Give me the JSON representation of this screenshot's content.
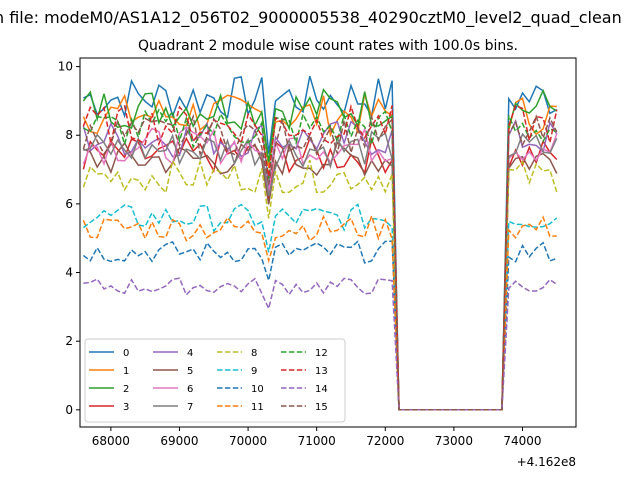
{
  "suptitle": "n file: modeM0/AS1A12_056T02_9000005538_40290cztM0_level2_quad_clean",
  "chart_data": {
    "type": "line",
    "title": "Quadrant 2 module wise count rates with 100.0s bins.",
    "xlabel": "",
    "ylabel": "",
    "offset_text": "+4.162e8",
    "xlim": [
      67550,
      74780
    ],
    "ylim": [
      -0.5,
      10.25
    ],
    "x_ticks": [
      68000,
      69000,
      70000,
      71000,
      72000,
      73000,
      74000
    ],
    "y_ticks": [
      0,
      2,
      4,
      6,
      8,
      10
    ],
    "grid": false,
    "legend_position": "lower-left",
    "series": [
      {
        "name": "0",
        "color": "#1f77b4",
        "dash": "solid",
        "base": 9.1
      },
      {
        "name": "1",
        "color": "#ff7f0e",
        "dash": "solid",
        "base": 8.6
      },
      {
        "name": "2",
        "color": "#2ca02c",
        "dash": "solid",
        "base": 8.8
      },
      {
        "name": "3",
        "color": "#d62728",
        "dash": "solid",
        "base": 7.4
      },
      {
        "name": "4",
        "color": "#9467bd",
        "dash": "solid",
        "base": 7.9
      },
      {
        "name": "5",
        "color": "#8c564b",
        "dash": "solid",
        "base": 7.3
      },
      {
        "name": "6",
        "color": "#e377c2",
        "dash": "solid",
        "base": 7.7
      },
      {
        "name": "7",
        "color": "#7f7f7f",
        "dash": "solid",
        "base": 7.6
      },
      {
        "name": "8",
        "color": "#bcbd22",
        "dash": "dashed",
        "base": 6.8
      },
      {
        "name": "9",
        "color": "#17becf",
        "dash": "dashed",
        "base": 5.6
      },
      {
        "name": "10",
        "color": "#1f77b4",
        "dash": "dashed",
        "base": 4.6
      },
      {
        "name": "11",
        "color": "#ff7f0e",
        "dash": "dashed",
        "base": 5.3
      },
      {
        "name": "12",
        "color": "#2ca02c",
        "dash": "dashed",
        "base": 8.2
      },
      {
        "name": "13",
        "color": "#d62728",
        "dash": "dashed",
        "base": 8.3
      },
      {
        "name": "14",
        "color": "#9467bd",
        "dash": "dashed",
        "base": 3.6
      },
      {
        "name": "15",
        "color": "#8c564b",
        "dash": "dashed",
        "base": 8.0
      }
    ],
    "time_bins": {
      "start": 67600,
      "step": 100,
      "active_segments": [
        [
          67600,
          72100
        ],
        [
          73800,
          74500
        ]
      ],
      "dip": {
        "x": 70300,
        "fraction": 0.82
      },
      "dead_level": 0
    }
  }
}
